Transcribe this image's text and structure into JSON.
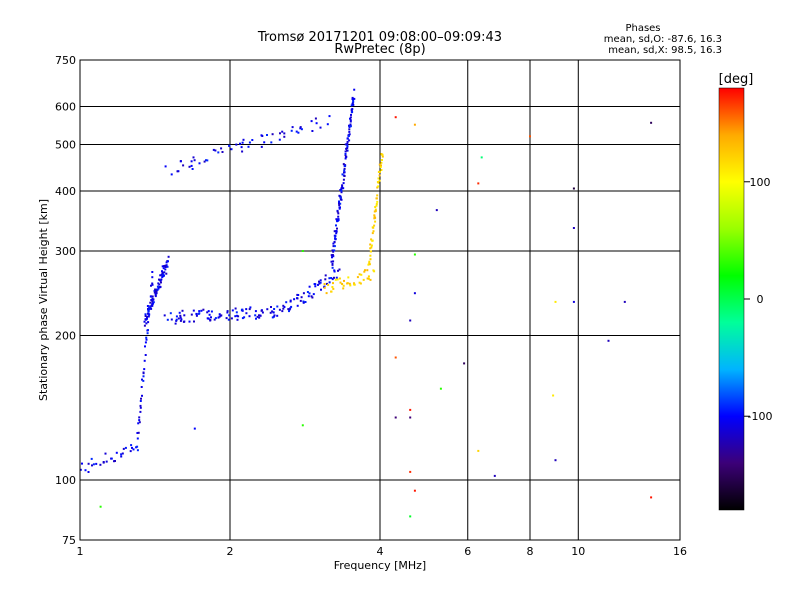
{
  "chart_data": {
    "type": "scatter",
    "title": "Tromsø 20171201 09:08:00–09:09:43",
    "subtitle": "RwPretec (8p)",
    "xlabel": "Frequency [MHz]",
    "ylabel": "Stationary phase Virtual Height [km]",
    "xscale": "log",
    "yscale": "log",
    "xlim": [
      1,
      16
    ],
    "ylim": [
      75,
      750
    ],
    "x_ticks": [
      1,
      2,
      4,
      6,
      8,
      10,
      16
    ],
    "y_ticks": [
      75,
      100,
      200,
      300,
      400,
      500,
      600,
      750
    ],
    "grid": true,
    "phase_stats": {
      "title": "Phases",
      "o_line": "mean, sd,O: -87.6, 16.3",
      "x_line": "mean, sd,X:  98.5, 16.3"
    },
    "colorbar": {
      "label": "[deg]",
      "range": [
        -180,
        180
      ],
      "ticks": [
        100,
        0,
        -100
      ],
      "stops": [
        "#000000",
        "#3c0078",
        "#0000ff",
        "#00b4ff",
        "#00ff9a",
        "#00ff00",
        "#9aff00",
        "#ffff00",
        "#ffaa00",
        "#ff0000"
      ]
    },
    "series": [
      {
        "name": "",
        "color_phase": -105,
        "segments": [
          {
            "f0": 1.0,
            "f1": 1.3,
            "h0": 105,
            "h1": 117,
            "n": 30
          },
          {
            "f0": 1.3,
            "f1": 1.4,
            "h0": 118,
            "h1": 270,
            "n": 45
          },
          {
            "f0": 1.35,
            "f1": 1.5,
            "h0": 215,
            "h1": 285,
            "n": 90
          },
          {
            "f0": 1.5,
            "f1": 2.6,
            "h0": 218,
            "h1": 225,
            "n": 100
          },
          {
            "f0": 2.6,
            "f1": 3.3,
            "h0": 228,
            "h1": 270,
            "n": 50
          },
          {
            "f0": 3.2,
            "f1": 3.55,
            "h0": 280,
            "h1": 640,
            "n": 130
          },
          {
            "f0": 1.5,
            "f1": 3.1,
            "h0": 445,
            "h1": 560,
            "n": 60
          }
        ]
      },
      {
        "name": "",
        "color_phase": 120,
        "segments": [
          {
            "f0": 3.1,
            "f1": 3.9,
            "h0": 250,
            "h1": 270,
            "n": 40
          },
          {
            "f0": 3.8,
            "f1": 4.05,
            "h0": 280,
            "h1": 490,
            "n": 55
          }
        ]
      }
    ],
    "outliers": [
      {
        "f": 4.3,
        "h": 570,
        "phase": 175
      },
      {
        "f": 4.7,
        "h": 550,
        "phase": 140
      },
      {
        "f": 8.0,
        "h": 520,
        "phase": 160
      },
      {
        "f": 6.4,
        "h": 470,
        "phase": -10
      },
      {
        "f": 6.3,
        "h": 415,
        "phase": 170
      },
      {
        "f": 9.8,
        "h": 405,
        "phase": -160
      },
      {
        "f": 5.2,
        "h": 365,
        "phase": -120
      },
      {
        "f": 9.8,
        "h": 335,
        "phase": -120
      },
      {
        "f": 4.7,
        "h": 295,
        "phase": 30
      },
      {
        "f": 4.7,
        "h": 245,
        "phase": -110
      },
      {
        "f": 9.0,
        "h": 235,
        "phase": 110
      },
      {
        "f": 9.8,
        "h": 235,
        "phase": -110
      },
      {
        "f": 12.4,
        "h": 235,
        "phase": -120
      },
      {
        "f": 4.6,
        "h": 215,
        "phase": -120
      },
      {
        "f": 11.5,
        "h": 195,
        "phase": -120
      },
      {
        "f": 4.3,
        "h": 180,
        "phase": 160
      },
      {
        "f": 5.9,
        "h": 175,
        "phase": -150
      },
      {
        "f": 5.3,
        "h": 155,
        "phase": 30
      },
      {
        "f": 8.9,
        "h": 150,
        "phase": 110
      },
      {
        "f": 4.3,
        "h": 135,
        "phase": -140
      },
      {
        "f": 4.6,
        "h": 135,
        "phase": -140
      },
      {
        "f": 4.6,
        "h": 140,
        "phase": 175
      },
      {
        "f": 6.3,
        "h": 115,
        "phase": 120
      },
      {
        "f": 9.0,
        "h": 110,
        "phase": -120
      },
      {
        "f": 6.8,
        "h": 102,
        "phase": -120
      },
      {
        "f": 4.6,
        "h": 104,
        "phase": 170
      },
      {
        "f": 4.7,
        "h": 95,
        "phase": 175
      },
      {
        "f": 2.8,
        "h": 130,
        "phase": 30
      },
      {
        "f": 1.7,
        "h": 128,
        "phase": -100
      },
      {
        "f": 1.1,
        "h": 88,
        "phase": 30
      },
      {
        "f": 4.6,
        "h": 84,
        "phase": 10
      },
      {
        "f": 14.0,
        "h": 555,
        "phase": -150
      },
      {
        "f": 14.0,
        "h": 92,
        "phase": 175
      },
      {
        "f": 2.8,
        "h": 300,
        "phase": 30
      }
    ]
  }
}
